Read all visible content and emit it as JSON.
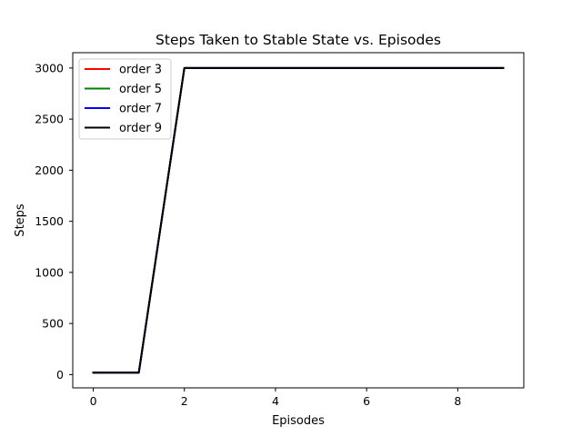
{
  "chart_data": {
    "type": "line",
    "title": "Steps Taken to Stable State vs. Episodes",
    "xlabel": "Episodes",
    "ylabel": "Steps",
    "xlim": [
      -0.45,
      9.45
    ],
    "ylim": [
      -129.9,
      3149.9
    ],
    "xticks": [
      0,
      2,
      4,
      6,
      8
    ],
    "yticks": [
      0,
      500,
      1000,
      1500,
      2000,
      2500,
      3000
    ],
    "grid": false,
    "legend_position": "top-left",
    "x": [
      0,
      1,
      2,
      3,
      4,
      5,
      6,
      7,
      8,
      9
    ],
    "series": [
      {
        "name": "order 3",
        "color": "#ff0000",
        "values": [
          19,
          19,
          3000,
          3000,
          3000,
          3000,
          3000,
          3000,
          3000,
          3000
        ]
      },
      {
        "name": "order 5",
        "color": "#008000",
        "values": [
          19,
          19,
          3000,
          3000,
          3000,
          3000,
          3000,
          3000,
          3000,
          3000
        ]
      },
      {
        "name": "order 7",
        "color": "#0000ff",
        "values": [
          19,
          19,
          3000,
          3000,
          3000,
          3000,
          3000,
          3000,
          3000,
          3000
        ]
      },
      {
        "name": "order 9",
        "color": "#000000",
        "values": [
          19,
          19,
          3000,
          3000,
          3000,
          3000,
          3000,
          3000,
          3000,
          3000
        ]
      }
    ]
  }
}
